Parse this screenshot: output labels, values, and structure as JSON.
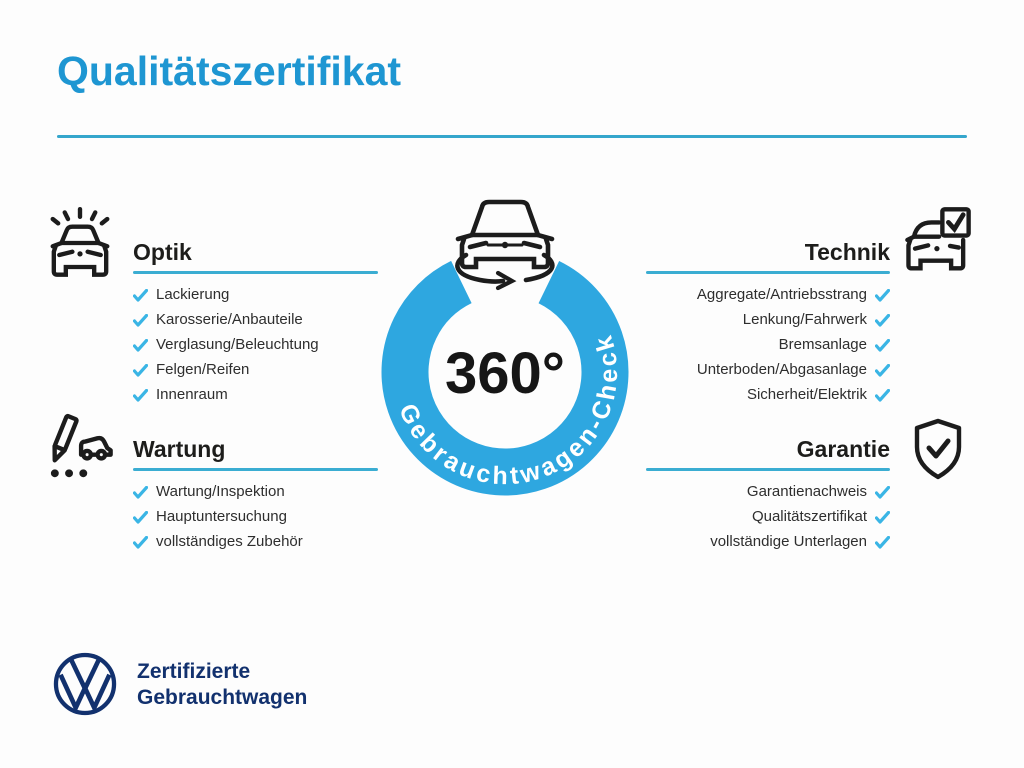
{
  "page": {
    "title": "Qualitätszertifikat"
  },
  "colors": {
    "title_blue": "#1e96d2",
    "ring_blue": "#2ea7e0",
    "line_blue": "#3badd2",
    "check_cyan": "#3ab5e5",
    "vw_navy": "#12316e",
    "text_dark": "#1d1d1b"
  },
  "center_badge": {
    "degrees": "360°",
    "ring_label": "Gebrauchtwagen-Check",
    "icon": "car-rotation-icon"
  },
  "sections": [
    {
      "id": "optik",
      "title": "Optik",
      "icon": "car-shine-icon",
      "side": "left",
      "items": [
        "Lackierung",
        "Karosserie/Anbauteile",
        "Verglasung/Beleuchtung",
        "Felgen/Reifen",
        "Innenraum"
      ]
    },
    {
      "id": "wartung",
      "title": "Wartung",
      "icon": "pencil-checklist-car-icon",
      "side": "left",
      "items": [
        "Wartung/Inspektion",
        "Hauptuntersuchung",
        "vollständiges Zubehör"
      ]
    },
    {
      "id": "technik",
      "title": "Technik",
      "icon": "car-checkbox-icon",
      "side": "right",
      "items": [
        "Aggregate/Antriebsstrang",
        "Lenkung/Fahrwerk",
        "Bremsanlage",
        "Unterboden/Abgasanlage",
        "Sicherheit/Elektrik"
      ]
    },
    {
      "id": "garantie",
      "title": "Garantie",
      "icon": "shield-check-icon",
      "side": "right",
      "items": [
        "Garantienachweis",
        "Qualitätszertifikat",
        "vollständige Unterlagen"
      ]
    }
  ],
  "footer": {
    "line1": "Zertifizierte",
    "line2": "Gebrauchtwagen",
    "logo": "vw-logo"
  }
}
